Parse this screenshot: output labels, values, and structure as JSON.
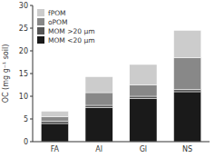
{
  "chart_data": {
    "type": "bar",
    "stacked": true,
    "categories": [
      "FA",
      "Al",
      "Gl",
      "NS"
    ],
    "series": [
      {
        "name": "MOM <20 μm",
        "color": "#1a1a1a",
        "values": [
          4.0,
          7.5,
          9.5,
          11.0
        ]
      },
      {
        "name": "MOM >20 μm",
        "color": "#555555",
        "values": [
          0.5,
          0.5,
          0.5,
          0.5
        ]
      },
      {
        "name": "oPOM",
        "color": "#888888",
        "values": [
          1.0,
          2.8,
          2.5,
          7.0
        ]
      },
      {
        "name": "fPOM",
        "color": "#cccccc",
        "values": [
          1.2,
          3.5,
          4.5,
          6.0
        ]
      }
    ],
    "ylabel": "OC (mg g⁻¹ soil)",
    "ylim": [
      0,
      30
    ],
    "yticks": [
      0,
      5,
      10,
      15,
      20,
      25,
      30
    ],
    "grid": false,
    "legend": "upper left"
  }
}
